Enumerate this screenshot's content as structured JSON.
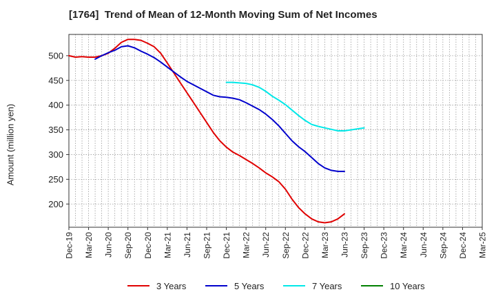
{
  "chart_data": {
    "type": "line",
    "title": "[1764]  Trend of Mean of 12-Month Moving Sum of Net Incomes",
    "xlabel": "",
    "ylabel": "Amount (million yen)",
    "x_ticks": [
      "Dec-19",
      "Mar-20",
      "Jun-20",
      "Sep-20",
      "Dec-20",
      "Mar-21",
      "Jun-21",
      "Sep-21",
      "Dec-21",
      "Mar-22",
      "Jun-22",
      "Sep-22",
      "Dec-22",
      "Mar-23",
      "Jun-23",
      "Sep-23",
      "Dec-23",
      "Mar-24",
      "Jun-24",
      "Sep-24",
      "Dec-24",
      "Mar-25"
    ],
    "y_ticks": [
      200,
      250,
      300,
      350,
      400,
      450,
      500
    ],
    "ylim": [
      153,
      543
    ],
    "grid": true,
    "legend_position": "bottom",
    "series": [
      {
        "name": "3 Years",
        "color": "#e00000",
        "points": [
          [
            0,
            500
          ],
          [
            1,
            497
          ],
          [
            2,
            498
          ],
          [
            3,
            497
          ],
          [
            4,
            497
          ],
          [
            5,
            500
          ],
          [
            6,
            505
          ],
          [
            7,
            515
          ],
          [
            8,
            527
          ],
          [
            9,
            533
          ],
          [
            10,
            533
          ],
          [
            11,
            531
          ],
          [
            12,
            525
          ],
          [
            13,
            518
          ],
          [
            14,
            505
          ],
          [
            15,
            485
          ],
          [
            16,
            465
          ],
          [
            17,
            445
          ],
          [
            18,
            425
          ],
          [
            19,
            405
          ],
          [
            20,
            385
          ],
          [
            21,
            365
          ],
          [
            22,
            345
          ],
          [
            23,
            328
          ],
          [
            24,
            315
          ],
          [
            25,
            305
          ],
          [
            26,
            298
          ],
          [
            27,
            290
          ],
          [
            28,
            282
          ],
          [
            29,
            273
          ],
          [
            30,
            263
          ],
          [
            31,
            255
          ],
          [
            32,
            245
          ],
          [
            33,
            230
          ],
          [
            34,
            210
          ],
          [
            35,
            193
          ],
          [
            36,
            180
          ],
          [
            37,
            170
          ],
          [
            38,
            164
          ],
          [
            39,
            162
          ],
          [
            40,
            164
          ],
          [
            41,
            170
          ],
          [
            42,
            180
          ]
        ]
      },
      {
        "name": "5 Years",
        "color": "#0000cc",
        "points": [
          [
            4,
            493
          ],
          [
            5,
            500
          ],
          [
            6,
            506
          ],
          [
            7,
            511
          ],
          [
            8,
            518
          ],
          [
            9,
            520
          ],
          [
            10,
            516
          ],
          [
            11,
            509
          ],
          [
            12,
            503
          ],
          [
            13,
            496
          ],
          [
            14,
            487
          ],
          [
            15,
            477
          ],
          [
            16,
            467
          ],
          [
            17,
            457
          ],
          [
            18,
            448
          ],
          [
            19,
            441
          ],
          [
            20,
            434
          ],
          [
            21,
            427
          ],
          [
            22,
            420
          ],
          [
            23,
            417
          ],
          [
            24,
            416
          ],
          [
            25,
            414
          ],
          [
            26,
            411
          ],
          [
            27,
            405
          ],
          [
            28,
            398
          ],
          [
            29,
            391
          ],
          [
            30,
            382
          ],
          [
            31,
            371
          ],
          [
            32,
            358
          ],
          [
            33,
            343
          ],
          [
            34,
            328
          ],
          [
            35,
            316
          ],
          [
            36,
            306
          ],
          [
            37,
            294
          ],
          [
            38,
            282
          ],
          [
            39,
            273
          ],
          [
            40,
            268
          ],
          [
            41,
            266
          ],
          [
            42,
            266
          ]
        ]
      },
      {
        "name": "7 Years",
        "color": "#00e8e8",
        "points": [
          [
            24,
            446
          ],
          [
            25,
            446
          ],
          [
            26,
            445
          ],
          [
            27,
            444
          ],
          [
            28,
            441
          ],
          [
            29,
            436
          ],
          [
            30,
            428
          ],
          [
            31,
            418
          ],
          [
            32,
            410
          ],
          [
            33,
            401
          ],
          [
            34,
            390
          ],
          [
            35,
            379
          ],
          [
            36,
            369
          ],
          [
            37,
            361
          ],
          [
            38,
            357
          ],
          [
            39,
            354
          ],
          [
            40,
            351
          ],
          [
            41,
            348
          ],
          [
            42,
            348
          ],
          [
            43,
            350
          ],
          [
            44,
            352
          ],
          [
            45,
            354
          ]
        ]
      },
      {
        "name": "10 Years",
        "color": "#008000",
        "points": []
      }
    ]
  }
}
